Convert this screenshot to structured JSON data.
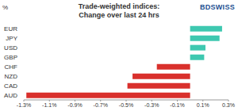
{
  "chart_data": {
    "type": "bar",
    "orientation": "horizontal",
    "title": "Trade-weighted indices:",
    "subtitle": "Change over last 24 hrs",
    "xlabel": "%",
    "annotations": [
      "BDSWISS"
    ],
    "categories": [
      "EUR",
      "JPY",
      "USD",
      "GBP",
      "CHF",
      "NZD",
      "CAD",
      "AUD"
    ],
    "values": [
      0.25,
      0.23,
      0.12,
      0.11,
      -0.26,
      -0.45,
      -0.49,
      -1.28
    ],
    "colors": [
      "#3ec8b0",
      "#3ec8b0",
      "#3ec8b0",
      "#3ec8b0",
      "#d9302c",
      "#d9302c",
      "#d9302c",
      "#d9302c"
    ],
    "xlim": [
      -1.3,
      0.3
    ],
    "xticks": [
      {
        "value": -1.3,
        "label": "-1.3%"
      },
      {
        "value": -1.1,
        "label": "-1.1%"
      },
      {
        "value": -0.9,
        "label": "-0.9%"
      },
      {
        "value": -0.7,
        "label": "-0.7%"
      },
      {
        "value": -0.5,
        "label": "-0.5%"
      },
      {
        "value": -0.3,
        "label": "-0.3%"
      },
      {
        "value": -0.1,
        "label": "-0.1%"
      },
      {
        "value": 0.1,
        "label": "0.1%"
      },
      {
        "value": 0.3,
        "label": "0.3%"
      }
    ],
    "grid": false,
    "data_labels": false
  }
}
